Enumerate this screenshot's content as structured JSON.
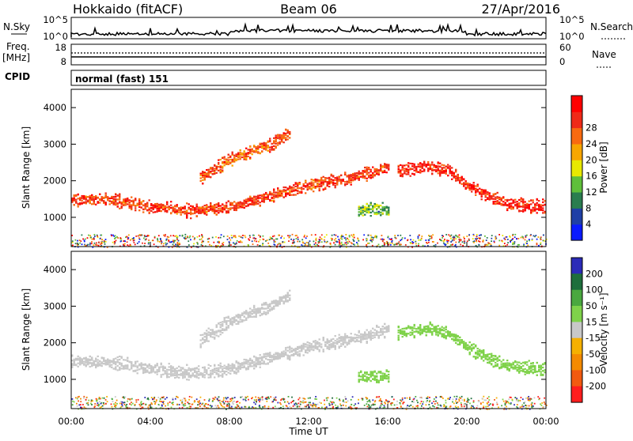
{
  "header": {
    "station": "Hokkaido (fitACF)",
    "beam": "Beam 06",
    "date": "27/Apr/2016"
  },
  "status_strip": {
    "nsky_label": "N.Sky",
    "nsky_ticks": [
      "10^5",
      "10^0"
    ],
    "nsearch_label": "N.Search",
    "nsearch_ticks": [
      "10^5",
      "10^0"
    ],
    "freq_label": "Freq.",
    "freq_unit": "[MHz]",
    "freq_ticks": [
      "18",
      "8"
    ],
    "nave_label": "Nave",
    "nave_ticks": [
      "60",
      "0"
    ],
    "cpid_label": "CPID",
    "cpid_value": "normal (fast) 151"
  },
  "xaxis": {
    "label": "Time UT",
    "ticks": [
      "00:00",
      "04:00",
      "08:00",
      "12:00",
      "16:00",
      "20:00",
      "00:00"
    ],
    "range_hours": [
      0,
      24
    ]
  },
  "colors": {
    "power_scale": [
      "#0a1aff",
      "#1f3fa6",
      "#2a7d4f",
      "#5fbf3a",
      "#e8e800",
      "#f7a600",
      "#f86a10",
      "#ef2a18",
      "#ff0000"
    ],
    "velocity_scale": [
      "#2b2bb8",
      "#1e6e3c",
      "#4aa83f",
      "#7fd24a",
      "#c8c8c8",
      "#f5b000",
      "#f48a00",
      "#f25a10",
      "#ff1d1d"
    ]
  },
  "chart_data": [
    {
      "type": "heatmap",
      "panel": "power",
      "ylabel": "Slant Range [km]",
      "yticks": [
        "1000",
        "2000",
        "3000",
        "4000"
      ],
      "ylim": [
        200,
        4500
      ],
      "colorbar_label": "Power [dB]",
      "colorbar_ticks": [
        "4",
        "8",
        "12",
        "16",
        "20",
        "24",
        "28"
      ],
      "colorbar_range": [
        0,
        32
      ],
      "bands": [
        {
          "x": [
            0,
            2,
            4,
            6,
            8,
            10,
            12,
            14,
            15.5,
            16
          ],
          "y": [
            1500,
            1500,
            1300,
            1200,
            1300,
            1600,
            1900,
            2100,
            2300,
            2400
          ],
          "value": 26
        },
        {
          "x": [
            6.5,
            8,
            9,
            10,
            11
          ],
          "y": [
            2100,
            2600,
            2800,
            3000,
            3300
          ],
          "value": 24
        },
        {
          "x": [
            16.5,
            18,
            19,
            20,
            21,
            22,
            24
          ],
          "y": [
            2300,
            2400,
            2300,
            1900,
            1600,
            1400,
            1300
          ],
          "value": 28
        },
        {
          "x": [
            14.5,
            15,
            16
          ],
          "y": [
            1200,
            1250,
            1200
          ],
          "value": 12
        }
      ]
    },
    {
      "type": "heatmap",
      "panel": "velocity",
      "ylabel": "Slant Range [km]",
      "yticks": [
        "1000",
        "2000",
        "3000",
        "4000"
      ],
      "ylim": [
        200,
        4500
      ],
      "colorbar_label": "Velocity [m s⁻¹]",
      "colorbar_ticks": [
        "200",
        "100",
        "50",
        "15",
        "-15",
        "-50",
        "-100",
        "-200"
      ],
      "colorbar_range": [
        -250,
        250
      ],
      "bands": [
        {
          "x": [
            0,
            2,
            4,
            6,
            8,
            10,
            12,
            14,
            15.5,
            16
          ],
          "y": [
            1500,
            1500,
            1300,
            1200,
            1300,
            1600,
            1900,
            2100,
            2300,
            2400
          ],
          "value": 0
        },
        {
          "x": [
            6.5,
            8,
            9,
            10,
            11
          ],
          "y": [
            2100,
            2600,
            2800,
            3000,
            3300
          ],
          "value": 0
        },
        {
          "x": [
            16.5,
            18,
            19,
            20,
            21,
            22,
            24
          ],
          "y": [
            2300,
            2400,
            2300,
            1900,
            1600,
            1400,
            1300
          ],
          "value": 60
        },
        {
          "x": [
            14.5,
            15,
            16
          ],
          "y": [
            1100,
            1100,
            1100
          ],
          "value": 60
        }
      ]
    }
  ]
}
